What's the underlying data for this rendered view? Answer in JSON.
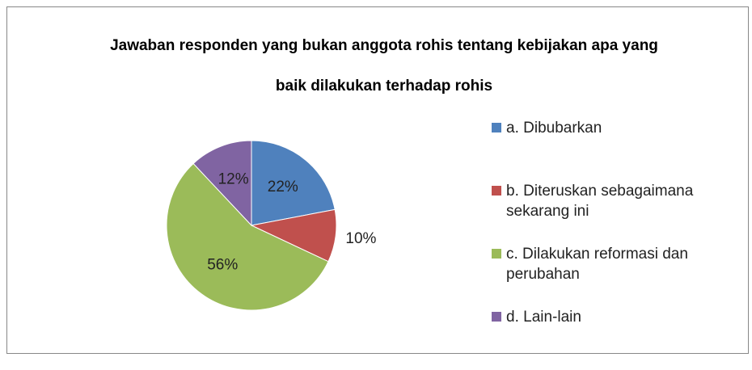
{
  "chart_data": {
    "type": "pie",
    "title": "Jawaban responden yang bukan anggota rohis tentang kebijakan apa yang baik dilakukan terhadap rohis",
    "categories": [
      "a. Dibubarkan",
      "b. Diteruskan sebagaimana sekarang ini",
      "c. Dilakukan reformasi dan perubahan",
      "d. Lain-lain"
    ],
    "values": [
      22,
      10,
      56,
      12
    ],
    "value_labels": [
      "22%",
      "10%",
      "56%",
      "12%"
    ],
    "colors": [
      "#4f81bd",
      "#c0504d",
      "#9bbb59",
      "#8064a2"
    ],
    "legend": "right"
  }
}
